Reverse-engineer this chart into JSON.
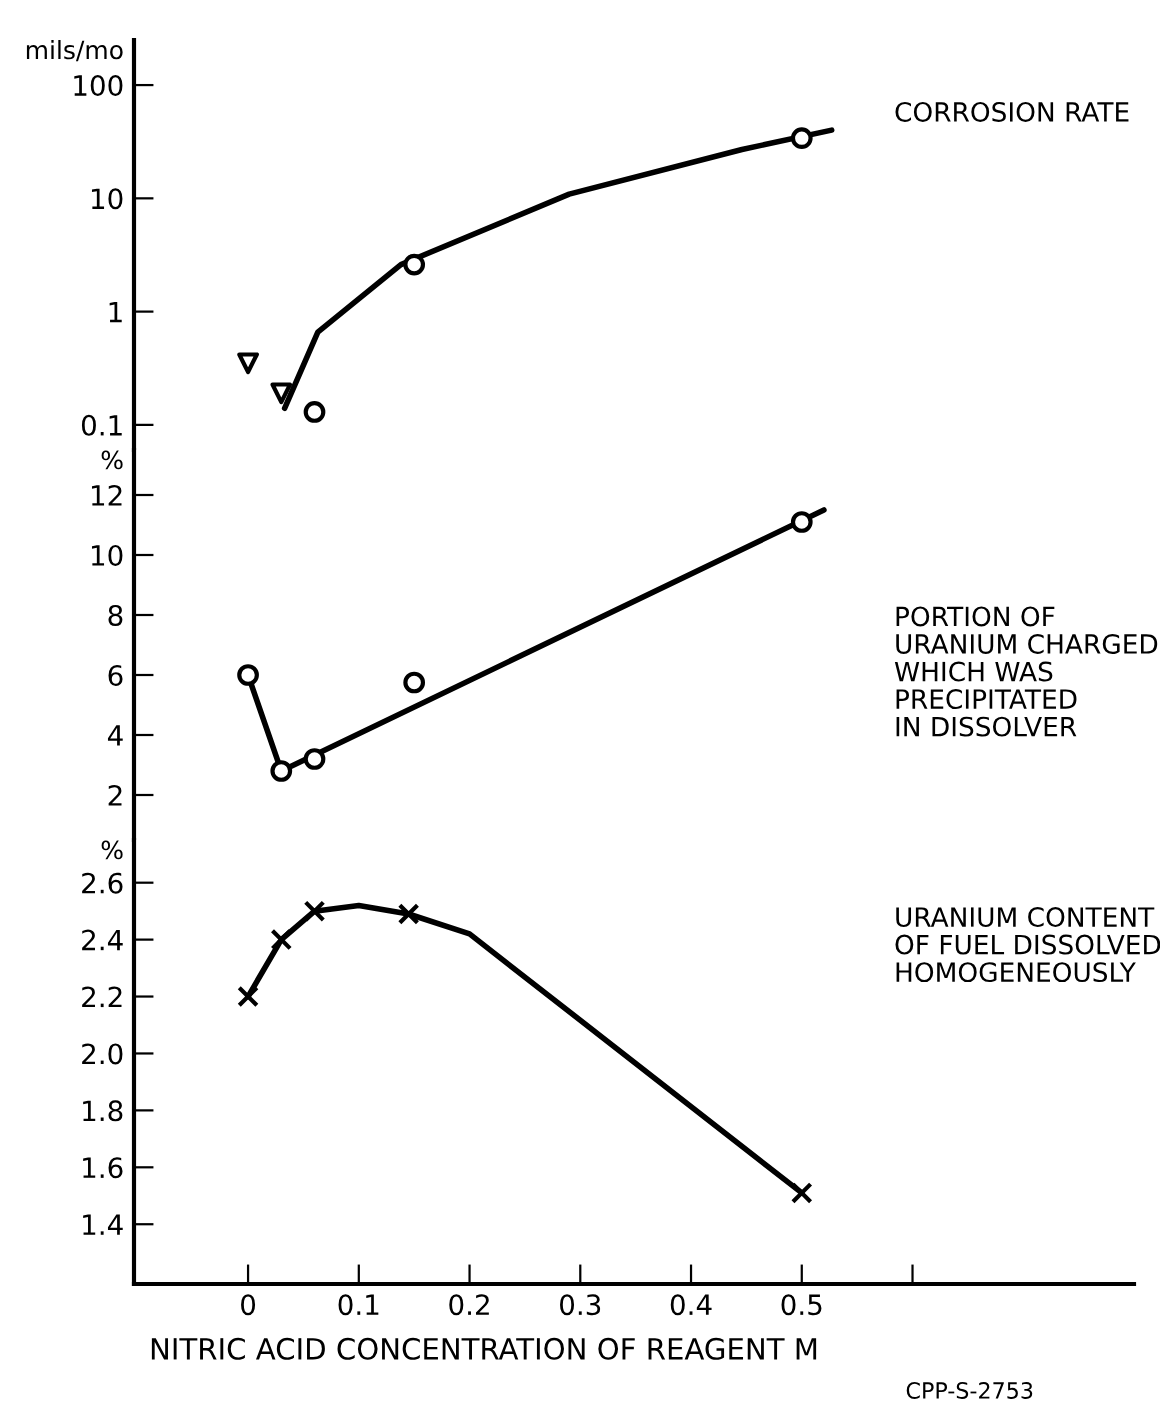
{
  "chart_data": [
    {
      "type": "scatter",
      "ylabel": "mils/mo",
      "log": true,
      "xlim": [
        -0.103,
        0.8
      ],
      "ylim": [
        0.06,
        250
      ],
      "yticks": [
        0.1,
        1,
        10,
        100
      ],
      "tick_labels": "y",
      "grid": false,
      "annotations": [
        "CORROSION RATE"
      ],
      "series": [
        {
          "marker": "circle",
          "color": "#000000",
          "x": [
            0.06,
            0.15,
            0.5
          ],
          "values": [
            0.13,
            2.6,
            34
          ]
        },
        {
          "type": "line",
          "marker": "none",
          "color": "#000000",
          "x": [
            0.033,
            0.063,
            0.138,
            0.29,
            0.446,
            0.527
          ],
          "values": [
            0.14,
            0.66,
            2.6,
            10.9,
            27,
            40
          ]
        },
        {
          "marker": "triangle",
          "color": "#000000",
          "x": [
            0,
            0.03
          ],
          "values": [
            0.35,
            0.19
          ]
        }
      ]
    },
    {
      "type": "scatter",
      "ylabel": "%",
      "xlim": [
        -0.103,
        0.8
      ],
      "ylim": [
        0.5,
        13.5
      ],
      "yticks": [
        2,
        4,
        6,
        8,
        10,
        12
      ],
      "tick_labels": "y",
      "grid": false,
      "annotations": [
        "PORTION OF\nURANIUM CHARGED\nWHICH WAS\nPRECIPITATED\nIN DISSOLVER"
      ],
      "series": [
        {
          "marker": "circle",
          "color": "#000000",
          "x": [
            0,
            0.03,
            0.06,
            0.15,
            0.5
          ],
          "values": [
            6.0,
            2.8,
            3.2,
            5.75,
            11.1
          ]
        },
        {
          "type": "line",
          "marker": "none",
          "color": "#000000",
          "x": [
            0,
            0.03,
            0.52
          ],
          "values": [
            6.0,
            2.8,
            11.5
          ]
        }
      ]
    },
    {
      "type": "scatter",
      "ylabel": "%",
      "xlabel": "NITRIC ACID CONCENTRATION OF REAGENT M",
      "xlim": [
        -0.103,
        0.8
      ],
      "xticks": [
        0,
        0.1,
        0.2,
        0.3,
        0.4,
        0.5,
        {
          "value": 0.6,
          "label": null
        }
      ],
      "ylim": [
        1.19,
        2.75
      ],
      "yticks": [
        1.4,
        1.6,
        1.8,
        {
          "value": 2.0,
          "label": "2.0"
        },
        2.2,
        2.4,
        2.6
      ],
      "grid": false,
      "annotations": [
        "URANIUM CONTENT\nOF FUEL DISSOLVED\nHOMOGENEOUSLY",
        "CPP-S-2753"
      ],
      "series": [
        {
          "marker": "cross",
          "color": "#000000",
          "x": [
            0,
            0.03,
            0.06,
            0.145,
            0.5
          ],
          "values": [
            2.2,
            2.4,
            2.5,
            2.49,
            1.51
          ]
        },
        {
          "type": "line",
          "marker": "none",
          "color": "#000000",
          "x": [
            0,
            0.03,
            0.06,
            0.1,
            0.145,
            0.2,
            0.5
          ],
          "values": [
            2.2,
            2.4,
            2.5,
            2.52,
            2.49,
            2.42,
            1.51
          ]
        }
      ]
    }
  ]
}
